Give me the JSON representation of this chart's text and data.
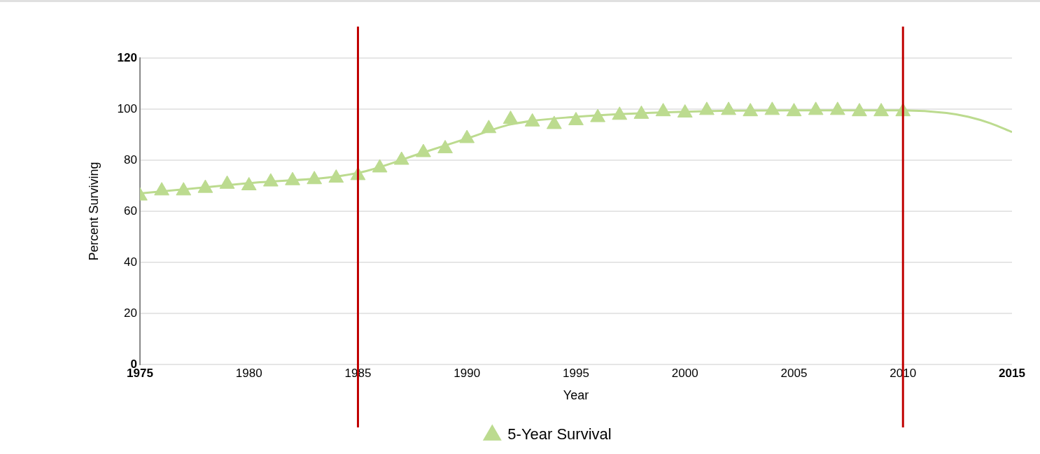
{
  "chart_data": {
    "type": "scatter",
    "xlabel": "Year",
    "ylabel": "Percent Surviving",
    "x": [
      1975,
      1976,
      1977,
      1978,
      1979,
      1980,
      1981,
      1982,
      1983,
      1984,
      1985,
      1986,
      1987,
      1988,
      1989,
      1990,
      1991,
      1992,
      1993,
      1994,
      1995,
      1996,
      1997,
      1998,
      1999,
      2000,
      2001,
      2002,
      2003,
      2004,
      2005,
      2006,
      2007,
      2008,
      2009,
      2010
    ],
    "series": [
      {
        "name": "5-Year Survival",
        "marker": "triangle",
        "color": "#bcdb8f",
        "values": [
          66,
          68,
          68,
          69,
          70.6,
          70,
          71.5,
          72,
          72.4,
          73,
          74,
          77,
          80,
          83,
          84.5,
          88.5,
          92.4,
          96,
          95,
          94,
          95.5,
          96.7,
          97.6,
          98,
          99,
          98.5,
          99.5,
          99.5,
          99,
          99.5,
          99,
          99.5,
          99.5,
          99,
          99,
          99
        ]
      },
      {
        "type": "line",
        "color": "#bcdb8f",
        "x": [
          1975,
          1980,
          1985,
          1988,
          1990,
          1992,
          1995,
          2000,
          2005,
          2010,
          2012,
          2013,
          2014,
          2015
        ],
        "values": [
          67,
          71,
          75,
          83,
          88.5,
          94,
          97,
          99,
          99.5,
          99.5,
          98.5,
          97,
          94.5,
          91
        ]
      }
    ],
    "xlim": [
      1975,
      2015
    ],
    "xticks": [
      1975,
      1980,
      1985,
      1990,
      1995,
      2000,
      2005,
      2010,
      2015
    ],
    "ylim": [
      0,
      120
    ],
    "yticks": [
      0,
      20,
      40,
      60,
      80,
      100,
      120
    ],
    "ref_lines": [
      {
        "axis": "x",
        "value": 1985,
        "color": "#c00000"
      },
      {
        "axis": "x",
        "value": 2010,
        "color": "#c00000"
      }
    ],
    "grid": "y",
    "legend": "bottom"
  }
}
